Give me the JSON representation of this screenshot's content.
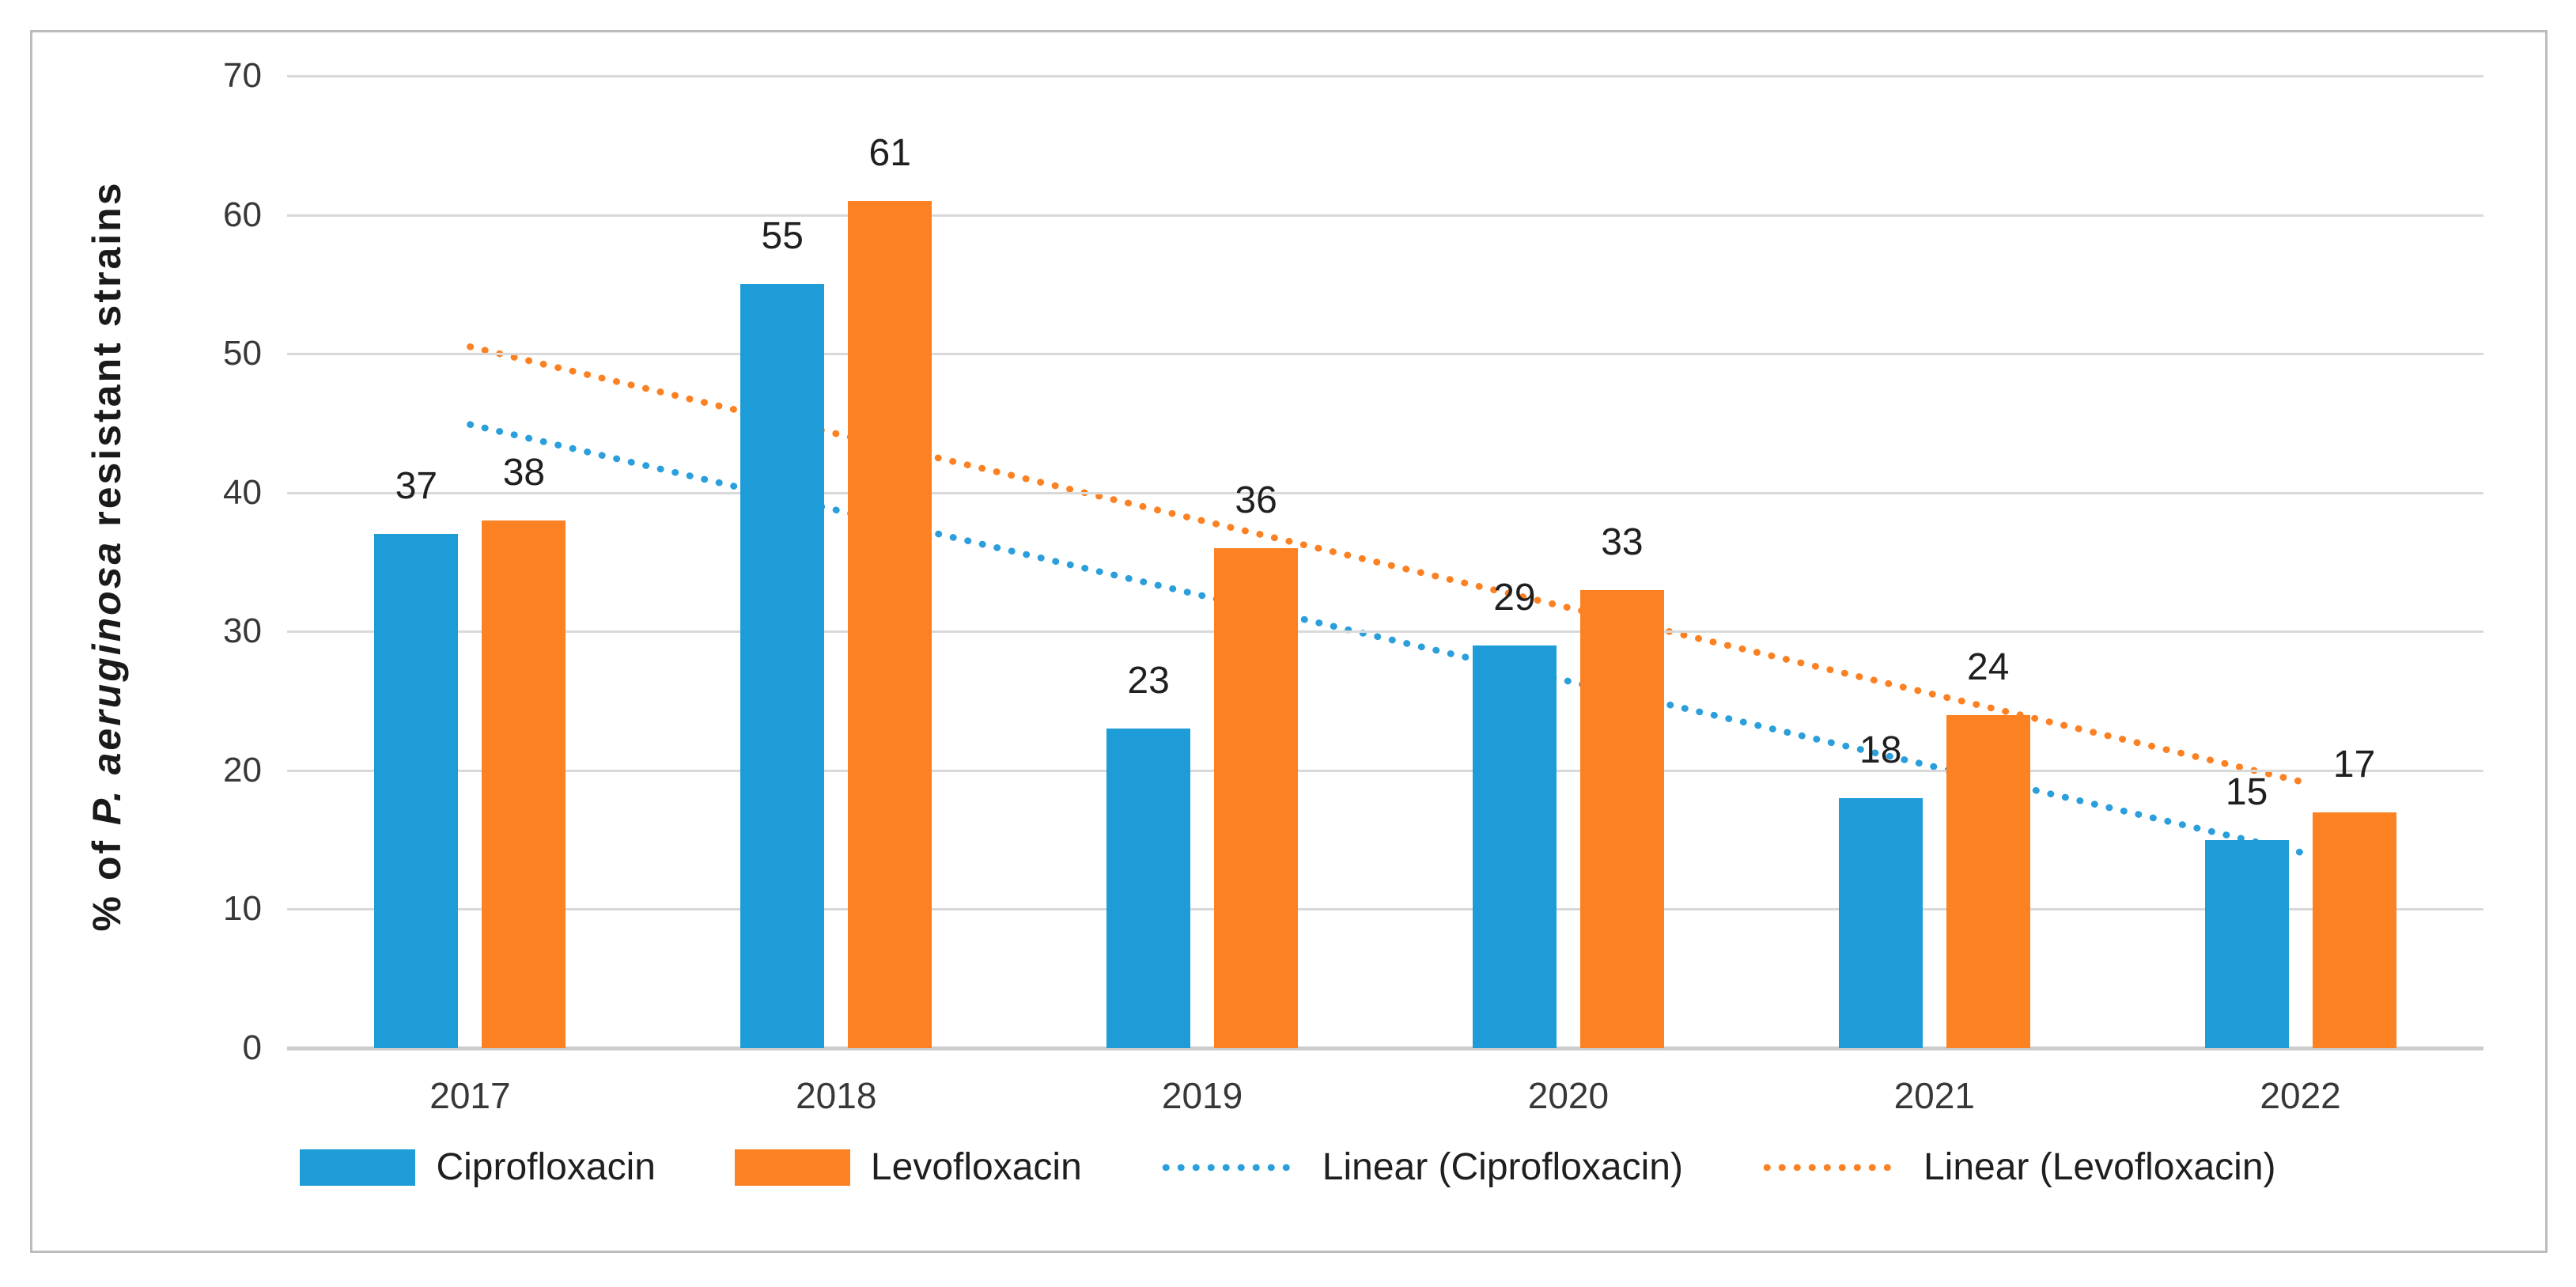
{
  "chart_data": {
    "type": "bar",
    "title": "",
    "ylabel_parts": {
      "prefix": "% of ",
      "italic": "P. aeruginosa",
      "suffix": " resistant strains"
    },
    "categories": [
      "2017",
      "2018",
      "2019",
      "2020",
      "2021",
      "2022"
    ],
    "series": [
      {
        "name": "Ciprofloxacin",
        "color": "#1E9CD8",
        "values": [
          37,
          55,
          23,
          29,
          18,
          15
        ]
      },
      {
        "name": "Levofloxacin",
        "color": "#FB8123",
        "values": [
          38,
          61,
          36,
          33,
          24,
          17
        ]
      }
    ],
    "trendlines": [
      {
        "name": "Linear (Ciprofloxacin)",
        "color": "#2B9FDB",
        "start": 44.9,
        "end": 14.1
      },
      {
        "name": "Linear (Levofloxacin)",
        "color": "#FB8123",
        "start": 50.5,
        "end": 19.2
      }
    ],
    "ylim": [
      0,
      70
    ],
    "yticks": [
      0,
      10,
      20,
      30,
      40,
      50,
      60,
      70
    ],
    "grid": true,
    "legend_position": "bottom",
    "colors": {
      "gridline": "#D9D9D9",
      "axis_line": "#CCCCCC",
      "frame_border": "#BDBDBD",
      "label_text": "#1f1f1f",
      "tick_text": "#383838"
    }
  }
}
